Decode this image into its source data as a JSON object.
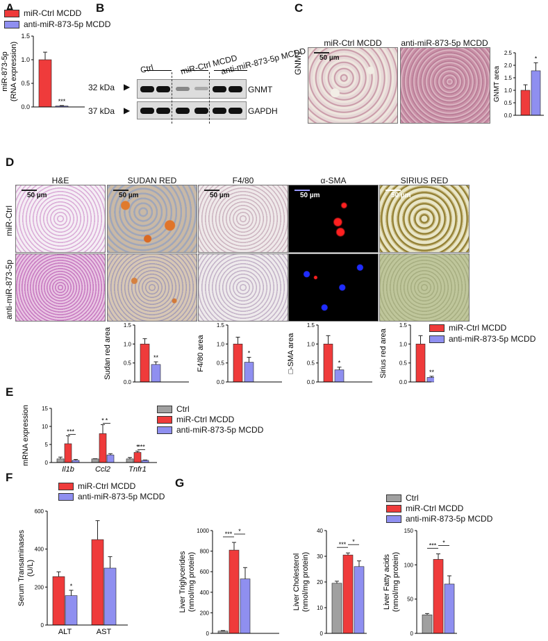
{
  "colors": {
    "ctrl": "#a0a0a0",
    "mir_ctrl": "#ef3b3b",
    "anti": "#8f8ff0"
  },
  "panel_labels": {
    "A": "A",
    "B": "B",
    "C": "C",
    "D": "D",
    "E": "E",
    "F": "F",
    "G": "G"
  },
  "legend_top": {
    "mir_ctrl": "miR-Ctrl MCDD",
    "anti": "anti-miR-873-5p MCDD"
  },
  "panel_b": {
    "lanes": [
      "Ctrl",
      "miR-Ctrl MCDD",
      "anti-miR-873-5p MCDD"
    ],
    "mw": [
      "32 kDa",
      "37 kDa"
    ],
    "proteins": [
      "GNMT",
      "GAPDH"
    ]
  },
  "panel_c": {
    "col_labels": [
      "miR-Ctrl MCDD",
      "anti-miR-873-5p MCDD"
    ],
    "row_label": "GNMT",
    "scale": "50 µm"
  },
  "panel_d": {
    "col_labels": [
      "H&E",
      "SUDAN RED",
      "F4/80",
      "α-SMA",
      "SIRIUS RED"
    ],
    "row_labels": [
      "miR-Ctrl",
      "anti-miR-873-5p"
    ],
    "scale": "50 µm",
    "legend": {
      "mir_ctrl": "miR-Ctrl MCDD",
      "anti": "anti-miR-873-5p MCDD"
    }
  },
  "legend_e": {
    "ctrl": "Ctrl",
    "mir_ctrl": "miR-Ctrl MCDD",
    "anti": "anti-miR-873-5p MCDD"
  },
  "legend_f": {
    "mir_ctrl": "miR-Ctrl MCDD",
    "anti": "anti-miR-873-5p MCDD"
  },
  "legend_g": {
    "ctrl": "Ctrl",
    "mir_ctrl": "miR-Ctrl MCDD",
    "anti": "anti-miR-873-5p MCDD"
  },
  "chart_data": [
    {
      "id": "A",
      "type": "bar",
      "ylabel": [
        "miR-873-5p",
        "(RNA expression)"
      ],
      "ylim": [
        0,
        1.5
      ],
      "yticks": [
        0,
        0.5,
        1.0,
        1.5
      ],
      "ytick_labels": [
        "0.0",
        "0.5",
        "1.0",
        "1.5"
      ],
      "series": [
        {
          "name": "miR-Ctrl MCDD",
          "key": "mir_ctrl",
          "values": [
            1.0
          ],
          "err": [
            0.16
          ]
        },
        {
          "name": "anti-miR-873-5p MCDD",
          "key": "anti",
          "values": [
            0.02
          ],
          "err": [
            0.01
          ]
        }
      ],
      "annotations": [
        {
          "text": "***",
          "series": 1,
          "group": 0
        }
      ]
    },
    {
      "id": "C",
      "type": "bar",
      "ylabel": [
        "GNMT area"
      ],
      "ylim": [
        0,
        2.5
      ],
      "yticks": [
        0,
        0.5,
        1.0,
        1.5,
        2.0,
        2.5
      ],
      "ytick_labels": [
        "0.0",
        "0.5",
        "1.0",
        "1.5",
        "2.0",
        "2.5"
      ],
      "series": [
        {
          "name": "miR-Ctrl MCDD",
          "key": "mir_ctrl",
          "values": [
            1.0
          ],
          "err": [
            0.22
          ]
        },
        {
          "name": "anti-miR-873-5p MCDD",
          "key": "anti",
          "values": [
            1.78
          ],
          "err": [
            0.32
          ]
        }
      ],
      "annotations": [
        {
          "text": "*",
          "series": 1,
          "group": 0
        }
      ]
    },
    {
      "id": "D1",
      "type": "bar",
      "ylabel": [
        "Sudan red area"
      ],
      "ylim": [
        0,
        1.5
      ],
      "yticks": [
        0,
        0.5,
        1.0,
        1.5
      ],
      "ytick_labels": [
        "0.0",
        "0.5",
        "1.0",
        "1.5"
      ],
      "series": [
        {
          "name": "miR-Ctrl MCDD",
          "key": "mir_ctrl",
          "values": [
            1.0
          ],
          "err": [
            0.14
          ]
        },
        {
          "name": "anti-miR-873-5p MCDD",
          "key": "anti",
          "values": [
            0.46
          ],
          "err": [
            0.07
          ]
        }
      ],
      "annotations": [
        {
          "text": "**",
          "series": 1,
          "group": 0
        }
      ]
    },
    {
      "id": "D2",
      "type": "bar",
      "ylabel": [
        "F4/80 area"
      ],
      "ylim": [
        0,
        1.5
      ],
      "yticks": [
        0,
        0.5,
        1.0,
        1.5
      ],
      "ytick_labels": [
        "0.0",
        "0.5",
        "1.0",
        "1.5"
      ],
      "series": [
        {
          "name": "miR-Ctrl MCDD",
          "key": "mir_ctrl",
          "values": [
            1.0
          ],
          "err": [
            0.18
          ]
        },
        {
          "name": "anti-miR-873-5p MCDD",
          "key": "anti",
          "values": [
            0.52
          ],
          "err": [
            0.13
          ]
        }
      ],
      "annotations": [
        {
          "text": "*",
          "series": 1,
          "group": 0
        }
      ]
    },
    {
      "id": "D3",
      "type": "bar",
      "ylabel": [
        "□-SMA area"
      ],
      "ylim": [
        0,
        1.5
      ],
      "yticks": [
        0,
        0.5,
        1.0,
        1.5
      ],
      "ytick_labels": [
        "0.0",
        "0.5",
        "1.0",
        "1.5"
      ],
      "series": [
        {
          "name": "miR-Ctrl MCDD",
          "key": "mir_ctrl",
          "values": [
            1.0
          ],
          "err": [
            0.22
          ]
        },
        {
          "name": "anti-miR-873-5p MCDD",
          "key": "anti",
          "values": [
            0.32
          ],
          "err": [
            0.07
          ]
        }
      ],
      "annotations": [
        {
          "text": "*",
          "series": 1,
          "group": 0
        }
      ]
    },
    {
      "id": "D4",
      "type": "bar",
      "ylabel": [
        "Sirius  red area"
      ],
      "ylim": [
        0,
        1.5
      ],
      "yticks": [
        0,
        0.5,
        1.0,
        1.5
      ],
      "ytick_labels": [
        "0.0",
        "0.5",
        "1.0",
        "1.5"
      ],
      "series": [
        {
          "name": "miR-Ctrl MCDD",
          "key": "mir_ctrl",
          "values": [
            1.0
          ],
          "err": [
            0.22
          ]
        },
        {
          "name": "anti-miR-873-5p MCDD",
          "key": "anti",
          "values": [
            0.12
          ],
          "err": [
            0.03
          ]
        }
      ],
      "annotations": [
        {
          "text": "**",
          "series": 1,
          "group": 0
        }
      ]
    },
    {
      "id": "E",
      "type": "bar",
      "ylabel": [
        "mRNA expression"
      ],
      "ylim": [
        0,
        15
      ],
      "yticks": [
        0,
        5,
        10,
        15
      ],
      "ytick_labels": [
        "0",
        "5",
        "10",
        "15"
      ],
      "categories": [
        "Il1b",
        "Ccl2",
        "Tnfr1"
      ],
      "italic_categories": true,
      "series": [
        {
          "name": "Ctrl",
          "key": "ctrl",
          "values": [
            1.0,
            1.0,
            1.0
          ],
          "err": [
            0.5,
            0.05,
            0.4
          ]
        },
        {
          "name": "miR-Ctrl MCDD",
          "key": "mir_ctrl",
          "values": [
            5.2,
            8.0,
            2.8
          ],
          "err": [
            2.2,
            2.5,
            0.35
          ]
        },
        {
          "name": "anti-miR-873-5p MCDD",
          "key": "anti",
          "values": [
            0.6,
            2.1,
            0.6
          ],
          "err": [
            0.25,
            0.35,
            0.1
          ]
        }
      ],
      "annotations": [
        {
          "text": "*",
          "series": 1,
          "group": 0
        },
        {
          "text": "**",
          "bracket": [
            1,
            2
          ],
          "group": 0
        },
        {
          "text": "*",
          "series": 1,
          "group": 1
        },
        {
          "text": "*",
          "bracket": [
            1,
            2
          ],
          "group": 1
        },
        {
          "text": "*",
          "series": 1,
          "group": 2
        },
        {
          "text": "***",
          "bracket": [
            1,
            2
          ],
          "group": 2
        }
      ]
    },
    {
      "id": "F",
      "type": "bar",
      "ylabel": [
        "Serum Transaminases",
        "(U/L)"
      ],
      "ylim": [
        0,
        600
      ],
      "yticks": [
        0,
        200,
        400,
        600
      ],
      "ytick_labels": [
        "0",
        "200",
        "400",
        "600"
      ],
      "categories": [
        "ALT",
        "AST"
      ],
      "series": [
        {
          "name": "miR-Ctrl MCDD",
          "key": "mir_ctrl",
          "values": [
            255,
            450
          ],
          "err": [
            25,
            100
          ]
        },
        {
          "name": "anti-miR-873-5p MCDD",
          "key": "anti",
          "values": [
            155,
            300
          ],
          "err": [
            28,
            60
          ]
        }
      ],
      "annotations": [
        {
          "text": "*",
          "series": 1,
          "group": 0
        }
      ]
    },
    {
      "id": "G1",
      "type": "bar",
      "ylabel": [
        "Liver Triglycerides",
        "(nmol/mg protein)"
      ],
      "ylim": [
        0,
        1000
      ],
      "yticks": [
        0,
        200,
        400,
        600,
        800,
        1000
      ],
      "ytick_labels": [
        "0",
        "200",
        "400",
        "600",
        "800",
        "1000"
      ],
      "series": [
        {
          "name": "Ctrl",
          "key": "ctrl",
          "values": [
            22
          ],
          "err": [
            5
          ]
        },
        {
          "name": "miR-Ctrl MCDD",
          "key": "mir_ctrl",
          "values": [
            810
          ],
          "err": [
            75
          ]
        },
        {
          "name": "anti-miR-873-5p MCDD",
          "key": "anti",
          "values": [
            530
          ],
          "err": [
            110
          ]
        }
      ],
      "annotations": [
        {
          "text": "***",
          "bracket": [
            0,
            1
          ],
          "group": 0
        },
        {
          "text": "*",
          "bracket": [
            1,
            2
          ],
          "group": 0
        }
      ]
    },
    {
      "id": "G2",
      "type": "bar",
      "ylabel": [
        "Liver Cholesterol",
        "(nmol/mg protein)"
      ],
      "ylim": [
        0,
        40
      ],
      "yticks": [
        0,
        10,
        20,
        30,
        40
      ],
      "ytick_labels": [
        "0",
        "10",
        "20",
        "30",
        "40"
      ],
      "series": [
        {
          "name": "Ctrl",
          "key": "ctrl",
          "values": [
            19.5
          ],
          "err": [
            0.8
          ]
        },
        {
          "name": "miR-Ctrl MCDD",
          "key": "mir_ctrl",
          "values": [
            30.5
          ],
          "err": [
            0.8
          ]
        },
        {
          "name": "anti-miR-873-5p MCDD",
          "key": "anti",
          "values": [
            26
          ],
          "err": [
            2.2
          ]
        }
      ],
      "annotations": [
        {
          "text": "***",
          "bracket": [
            0,
            1
          ],
          "group": 0
        },
        {
          "text": "*",
          "bracket": [
            1,
            2
          ],
          "group": 0
        }
      ]
    },
    {
      "id": "G3",
      "type": "bar",
      "ylabel": [
        "Liver Fatty acids",
        "(nmol/mg protein)"
      ],
      "ylim": [
        0,
        150
      ],
      "yticks": [
        0,
        50,
        100,
        150
      ],
      "ytick_labels": [
        "0",
        "50",
        "100",
        "150"
      ],
      "series": [
        {
          "name": "Ctrl",
          "key": "ctrl",
          "values": [
            27
          ],
          "err": [
            2
          ]
        },
        {
          "name": "miR-Ctrl MCDD",
          "key": "mir_ctrl",
          "values": [
            108
          ],
          "err": [
            8
          ]
        },
        {
          "name": "anti-miR-873-5p MCDD",
          "key": "anti",
          "values": [
            72
          ],
          "err": [
            12
          ]
        }
      ],
      "annotations": [
        {
          "text": "***",
          "bracket": [
            0,
            1
          ],
          "group": 0
        },
        {
          "text": "*",
          "bracket": [
            1,
            2
          ],
          "group": 0
        }
      ]
    }
  ]
}
